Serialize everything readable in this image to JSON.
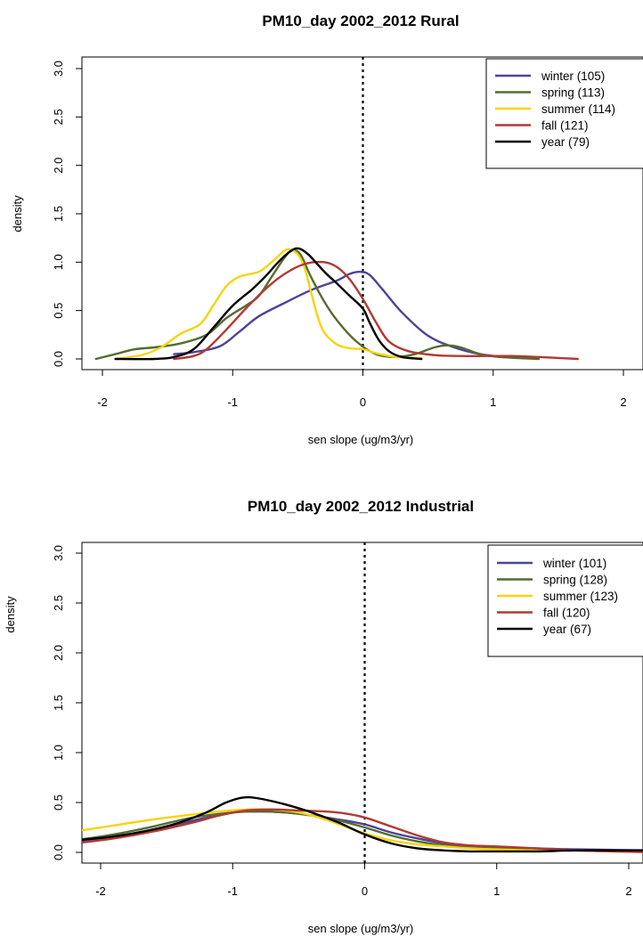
{
  "colors": {
    "winter": "#4b4499",
    "spring": "#566b30",
    "summer": "#f6d40d",
    "fall": "#b03a34",
    "year": "#000000"
  },
  "chart_data": [
    {
      "type": "line",
      "title": "PM10_day 2002_2012 Rural",
      "xlabel": "sen slope (ug/m3/yr)",
      "ylabel": "density",
      "xlim": [
        -2.2,
        2.2
      ],
      "ylim": [
        0,
        3.0
      ],
      "x_ticks": [
        -2,
        -1,
        0,
        1,
        2
      ],
      "x_tick_labels": [
        "-2",
        "-1",
        "0",
        "1",
        "2"
      ],
      "y_ticks": [
        0.0,
        0.5,
        1.0,
        1.5,
        2.0,
        2.5,
        3.0
      ],
      "y_tick_labels": [
        "0.0",
        "0.5",
        "1.0",
        "1.5",
        "2.0",
        "2.5",
        "3.0"
      ],
      "vline": 0,
      "legend_position": "top-right",
      "series": [
        {
          "key": "winter",
          "name": "winter (105)",
          "points": [
            [
              -1.45,
              0.05
            ],
            [
              -1.3,
              0.07
            ],
            [
              -1.1,
              0.13
            ],
            [
              -0.95,
              0.28
            ],
            [
              -0.8,
              0.44
            ],
            [
              -0.6,
              0.58
            ],
            [
              -0.4,
              0.71
            ],
            [
              -0.2,
              0.81
            ],
            [
              -0.1,
              0.88
            ],
            [
              -0.02,
              0.9
            ],
            [
              0.05,
              0.87
            ],
            [
              0.15,
              0.72
            ],
            [
              0.3,
              0.48
            ],
            [
              0.5,
              0.24
            ],
            [
              0.7,
              0.12
            ],
            [
              0.9,
              0.05
            ],
            [
              1.1,
              0.02
            ],
            [
              1.3,
              0.01
            ]
          ]
        },
        {
          "key": "spring",
          "name": "spring (113)",
          "points": [
            [
              -2.05,
              0.0
            ],
            [
              -1.9,
              0.05
            ],
            [
              -1.75,
              0.1
            ],
            [
              -1.6,
              0.12
            ],
            [
              -1.4,
              0.16
            ],
            [
              -1.2,
              0.25
            ],
            [
              -1.05,
              0.42
            ],
            [
              -0.9,
              0.55
            ],
            [
              -0.8,
              0.65
            ],
            [
              -0.7,
              0.85
            ],
            [
              -0.6,
              1.05
            ],
            [
              -0.54,
              1.12
            ],
            [
              -0.48,
              1.08
            ],
            [
              -0.4,
              0.85
            ],
            [
              -0.3,
              0.6
            ],
            [
              -0.2,
              0.4
            ],
            [
              -0.05,
              0.18
            ],
            [
              0.1,
              0.05
            ],
            [
              0.25,
              0.02
            ],
            [
              0.4,
              0.05
            ],
            [
              0.55,
              0.12
            ],
            [
              0.65,
              0.14
            ],
            [
              0.75,
              0.12
            ],
            [
              0.9,
              0.05
            ],
            [
              1.05,
              0.02
            ],
            [
              1.35,
              0.0
            ]
          ]
        },
        {
          "key": "summer",
          "name": "summer (114)",
          "points": [
            [
              -1.9,
              0.0
            ],
            [
              -1.7,
              0.04
            ],
            [
              -1.55,
              0.12
            ],
            [
              -1.4,
              0.26
            ],
            [
              -1.25,
              0.36
            ],
            [
              -1.15,
              0.55
            ],
            [
              -1.05,
              0.75
            ],
            [
              -0.95,
              0.85
            ],
            [
              -0.8,
              0.9
            ],
            [
              -0.7,
              1.0
            ],
            [
              -0.6,
              1.12
            ],
            [
              -0.56,
              1.13
            ],
            [
              -0.5,
              1.08
            ],
            [
              -0.45,
              0.95
            ],
            [
              -0.4,
              0.7
            ],
            [
              -0.35,
              0.45
            ],
            [
              -0.3,
              0.28
            ],
            [
              -0.2,
              0.15
            ],
            [
              -0.1,
              0.11
            ],
            [
              0.0,
              0.1
            ],
            [
              0.1,
              0.06
            ],
            [
              0.25,
              0.02
            ],
            [
              0.45,
              0.01
            ]
          ]
        },
        {
          "key": "fall",
          "name": "fall (121)",
          "points": [
            [
              -1.45,
              0.0
            ],
            [
              -1.3,
              0.03
            ],
            [
              -1.2,
              0.1
            ],
            [
              -1.05,
              0.3
            ],
            [
              -0.9,
              0.52
            ],
            [
              -0.75,
              0.72
            ],
            [
              -0.6,
              0.88
            ],
            [
              -0.45,
              0.98
            ],
            [
              -0.3,
              1.0
            ],
            [
              -0.2,
              0.95
            ],
            [
              -0.1,
              0.82
            ],
            [
              0.0,
              0.62
            ],
            [
              0.1,
              0.38
            ],
            [
              0.2,
              0.18
            ],
            [
              0.35,
              0.08
            ],
            [
              0.55,
              0.04
            ],
            [
              0.75,
              0.03
            ],
            [
              0.95,
              0.03
            ],
            [
              1.15,
              0.03
            ],
            [
              1.35,
              0.02
            ],
            [
              1.5,
              0.01
            ],
            [
              1.65,
              0.0
            ]
          ]
        },
        {
          "key": "year",
          "name": "year (79)",
          "points": [
            [
              -1.9,
              0.0
            ],
            [
              -1.6,
              0.0
            ],
            [
              -1.45,
              0.02
            ],
            [
              -1.3,
              0.1
            ],
            [
              -1.15,
              0.32
            ],
            [
              -1.0,
              0.55
            ],
            [
              -0.85,
              0.72
            ],
            [
              -0.75,
              0.85
            ],
            [
              -0.65,
              1.0
            ],
            [
              -0.55,
              1.12
            ],
            [
              -0.49,
              1.14
            ],
            [
              -0.42,
              1.08
            ],
            [
              -0.35,
              0.98
            ],
            [
              -0.28,
              0.88
            ],
            [
              -0.2,
              0.78
            ],
            [
              -0.1,
              0.65
            ],
            [
              0.0,
              0.52
            ],
            [
              0.05,
              0.38
            ],
            [
              0.12,
              0.2
            ],
            [
              0.2,
              0.08
            ],
            [
              0.3,
              0.02
            ],
            [
              0.45,
              0.0
            ]
          ]
        }
      ]
    },
    {
      "type": "line",
      "title": "PM10_day 2002_2012 Industrial",
      "xlabel": "sen slope (ug/m3/yr)",
      "ylabel": "density",
      "xlim": [
        -2.2,
        2.2
      ],
      "ylim": [
        0,
        3.0
      ],
      "x_ticks": [
        -2,
        -1,
        0,
        1,
        2
      ],
      "x_tick_labels": [
        "-2",
        "-1",
        "0",
        "1",
        "2"
      ],
      "y_ticks": [
        0.0,
        0.5,
        1.0,
        1.5,
        2.0,
        2.5,
        3.0
      ],
      "y_tick_labels": [
        "0.0",
        "0.5",
        "1.0",
        "1.5",
        "2.0",
        "2.5",
        "3.0"
      ],
      "vline": 0,
      "legend_position": "top-right",
      "series": [
        {
          "key": "winter",
          "name": "winter (101)",
          "points": [
            [
              -2.2,
              0.1
            ],
            [
              -1.9,
              0.15
            ],
            [
              -1.6,
              0.22
            ],
            [
              -1.3,
              0.32
            ],
            [
              -1.0,
              0.4
            ],
            [
              -0.8,
              0.41
            ],
            [
              -0.6,
              0.4
            ],
            [
              -0.4,
              0.37
            ],
            [
              -0.2,
              0.33
            ],
            [
              0.0,
              0.28
            ],
            [
              0.2,
              0.2
            ],
            [
              0.4,
              0.14
            ],
            [
              0.6,
              0.09
            ],
            [
              0.8,
              0.06
            ],
            [
              1.0,
              0.05
            ],
            [
              1.3,
              0.04
            ],
            [
              1.6,
              0.03
            ],
            [
              1.9,
              0.025
            ],
            [
              2.2,
              0.02
            ]
          ]
        },
        {
          "key": "spring",
          "name": "spring (128)",
          "points": [
            [
              -2.2,
              0.12
            ],
            [
              -1.9,
              0.18
            ],
            [
              -1.6,
              0.26
            ],
            [
              -1.3,
              0.35
            ],
            [
              -1.0,
              0.4
            ],
            [
              -0.8,
              0.41
            ],
            [
              -0.6,
              0.4
            ],
            [
              -0.4,
              0.37
            ],
            [
              -0.2,
              0.32
            ],
            [
              0.0,
              0.25
            ],
            [
              0.2,
              0.17
            ],
            [
              0.4,
              0.11
            ],
            [
              0.6,
              0.07
            ],
            [
              0.8,
              0.05
            ],
            [
              1.0,
              0.04
            ],
            [
              1.3,
              0.03
            ],
            [
              1.6,
              0.02
            ],
            [
              1.9,
              0.01
            ],
            [
              2.2,
              0.01
            ]
          ]
        },
        {
          "key": "summer",
          "name": "summer (123)",
          "points": [
            [
              -2.2,
              0.21
            ],
            [
              -1.9,
              0.27
            ],
            [
              -1.6,
              0.33
            ],
            [
              -1.3,
              0.38
            ],
            [
              -1.1,
              0.41
            ],
            [
              -0.9,
              0.43
            ],
            [
              -0.7,
              0.43
            ],
            [
              -0.5,
              0.4
            ],
            [
              -0.3,
              0.33
            ],
            [
              -0.15,
              0.26
            ],
            [
              0.0,
              0.19
            ],
            [
              0.2,
              0.12
            ],
            [
              0.4,
              0.08
            ],
            [
              0.6,
              0.06
            ],
            [
              0.8,
              0.04
            ],
            [
              1.0,
              0.03
            ],
            [
              1.3,
              0.02
            ],
            [
              1.6,
              0.02
            ],
            [
              1.9,
              0.01
            ],
            [
              2.2,
              0.01
            ]
          ]
        },
        {
          "key": "fall",
          "name": "fall (120)",
          "points": [
            [
              -2.2,
              0.09
            ],
            [
              -1.9,
              0.14
            ],
            [
              -1.6,
              0.21
            ],
            [
              -1.3,
              0.3
            ],
            [
              -1.1,
              0.37
            ],
            [
              -0.9,
              0.42
            ],
            [
              -0.7,
              0.43
            ],
            [
              -0.5,
              0.42
            ],
            [
              -0.3,
              0.41
            ],
            [
              -0.15,
              0.39
            ],
            [
              0.0,
              0.35
            ],
            [
              0.2,
              0.26
            ],
            [
              0.4,
              0.17
            ],
            [
              0.6,
              0.1
            ],
            [
              0.8,
              0.07
            ],
            [
              1.0,
              0.06
            ],
            [
              1.3,
              0.04
            ],
            [
              1.6,
              0.02
            ],
            [
              1.9,
              0.01
            ],
            [
              2.2,
              0.0
            ]
          ]
        },
        {
          "key": "year",
          "name": "year (67)",
          "points": [
            [
              -2.2,
              0.12
            ],
            [
              -1.9,
              0.16
            ],
            [
              -1.6,
              0.23
            ],
            [
              -1.4,
              0.3
            ],
            [
              -1.2,
              0.4
            ],
            [
              -1.05,
              0.5
            ],
            [
              -0.92,
              0.55
            ],
            [
              -0.8,
              0.54
            ],
            [
              -0.6,
              0.48
            ],
            [
              -0.4,
              0.4
            ],
            [
              -0.2,
              0.3
            ],
            [
              0.0,
              0.18
            ],
            [
              0.2,
              0.09
            ],
            [
              0.4,
              0.04
            ],
            [
              0.6,
              0.02
            ],
            [
              0.8,
              0.01
            ],
            [
              1.0,
              0.01
            ],
            [
              1.3,
              0.01
            ],
            [
              1.6,
              0.02
            ],
            [
              1.9,
              0.02
            ],
            [
              2.2,
              0.02
            ]
          ]
        }
      ]
    }
  ]
}
